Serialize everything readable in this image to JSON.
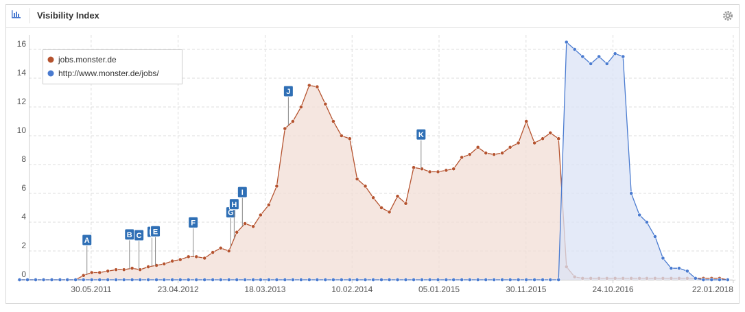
{
  "chart_data": {
    "type": "area",
    "title": "Visibility Index",
    "x": [
      "2010-09-01",
      "2010-10-01",
      "2010-11-01",
      "2010-12-01",
      "2011-01-01",
      "2011-02-01",
      "2011-03-01",
      "2011-04-01",
      "2011-05-01",
      "2011-06-01",
      "2011-07-01",
      "2011-08-01",
      "2011-09-01",
      "2011-10-01",
      "2011-11-01",
      "2011-12-01",
      "2012-01-01",
      "2012-02-01",
      "2012-03-01",
      "2012-04-01",
      "2012-05-01",
      "2012-06-01",
      "2012-07-01",
      "2012-08-01",
      "2012-09-01",
      "2012-10-01",
      "2012-11-01",
      "2012-12-01",
      "2013-01-01",
      "2013-02-01",
      "2013-03-01",
      "2013-04-01",
      "2013-05-01",
      "2013-06-01",
      "2013-07-01",
      "2013-08-01",
      "2013-09-01",
      "2013-10-01",
      "2013-11-01",
      "2013-12-01",
      "2014-01-01",
      "2014-02-01",
      "2014-03-01",
      "2014-04-01",
      "2014-05-01",
      "2014-06-01",
      "2014-07-01",
      "2014-08-01",
      "2014-09-01",
      "2014-10-01",
      "2014-11-01",
      "2014-12-01",
      "2015-01-01",
      "2015-02-01",
      "2015-03-01",
      "2015-04-01",
      "2015-05-01",
      "2015-06-01",
      "2015-07-01",
      "2015-08-01",
      "2015-09-01",
      "2015-10-01",
      "2015-11-01",
      "2015-12-01",
      "2016-01-01",
      "2016-02-01",
      "2016-03-01",
      "2016-04-01",
      "2016-05-01",
      "2016-06-01",
      "2016-07-01",
      "2016-08-01",
      "2016-09-01",
      "2016-10-01",
      "2016-11-01",
      "2016-12-01",
      "2017-01-01",
      "2017-02-01",
      "2017-03-01",
      "2017-04-01",
      "2017-05-01",
      "2017-06-01",
      "2017-07-01",
      "2017-08-01",
      "2017-09-01",
      "2017-10-01",
      "2017-11-01",
      "2017-12-01",
      "2018-01-01"
    ],
    "series": [
      {
        "name": "jobs.monster.de",
        "color": "#b5532f",
        "fill": "#f2ddd5",
        "values": [
          0,
          0,
          0,
          0,
          0,
          0,
          0,
          0,
          0.3,
          0.5,
          0.5,
          0.6,
          0.7,
          0.7,
          0.8,
          0.7,
          0.9,
          1.0,
          1.1,
          1.3,
          1.4,
          1.6,
          1.6,
          1.5,
          1.9,
          2.2,
          2.0,
          3.3,
          3.9,
          3.7,
          4.5,
          5.2,
          6.5,
          10.5,
          11.0,
          12.0,
          13.5,
          13.4,
          12.2,
          11.0,
          10.0,
          9.8,
          7.0,
          6.5,
          5.7,
          5.0,
          4.7,
          5.8,
          5.3,
          7.8,
          7.7,
          7.5,
          7.5,
          7.6,
          7.7,
          8.5,
          8.7,
          9.2,
          8.8,
          8.7,
          8.8,
          9.2,
          9.5,
          11.0,
          9.5,
          9.8,
          10.2,
          9.8,
          0.9,
          0.2,
          0.1,
          0.1,
          0.1,
          0.1,
          0.1,
          0.1,
          0.1,
          0.1,
          0.1,
          0.1,
          0.1,
          0.1,
          0.1,
          0.1,
          0.1,
          0.1,
          0.1,
          0.1,
          0
        ]
      },
      {
        "name": "http://www.monster.de/jobs/",
        "color": "#4a7bd0",
        "fill": "#dbe3f5",
        "values": [
          0,
          0,
          0,
          0,
          0,
          0,
          0,
          0,
          0,
          0,
          0,
          0,
          0,
          0,
          0,
          0,
          0,
          0,
          0,
          0,
          0,
          0,
          0,
          0,
          0,
          0,
          0,
          0,
          0,
          0,
          0,
          0,
          0,
          0,
          0,
          0,
          0,
          0,
          0,
          0,
          0,
          0,
          0,
          0,
          0,
          0,
          0,
          0,
          0,
          0,
          0,
          0,
          0,
          0,
          0,
          0,
          0,
          0,
          0,
          0,
          0,
          0,
          0,
          0,
          0,
          0,
          0,
          0,
          16.5,
          16.0,
          15.5,
          15.0,
          15.5,
          15.0,
          15.7,
          15.5,
          6.0,
          4.5,
          4.0,
          3.0,
          1.5,
          0.8,
          0.8,
          0.6,
          0.1,
          0,
          0,
          0,
          0
        ]
      }
    ],
    "events": [
      {
        "x": "2011-05-14",
        "label": "A"
      },
      {
        "x": "2011-10-22",
        "label": "B"
      },
      {
        "x": "2011-11-27",
        "label": "C"
      },
      {
        "x": "2012-01-15",
        "label": "D"
      },
      {
        "x": "2012-01-28",
        "label": "E"
      },
      {
        "x": "2012-06-19",
        "label": "F"
      },
      {
        "x": "2012-11-08",
        "label": "G"
      },
      {
        "x": "2012-11-21",
        "label": "H"
      },
      {
        "x": "2012-12-22",
        "label": "I"
      },
      {
        "x": "2013-06-14",
        "label": "J"
      },
      {
        "x": "2014-10-29",
        "label": "K"
      }
    ],
    "xlim": [
      "2010-08-23",
      "2018-01-30"
    ],
    "xticks": [
      {
        "value": "2011-05-30",
        "label": "30.05.2011"
      },
      {
        "value": "2012-04-23",
        "label": "23.04.2012"
      },
      {
        "value": "2013-03-18",
        "label": "18.03.2013"
      },
      {
        "value": "2014-02-10",
        "label": "10.02.2014"
      },
      {
        "value": "2015-01-05",
        "label": "05.01.2015"
      },
      {
        "value": "2015-11-30",
        "label": "30.11.2015"
      },
      {
        "value": "2016-10-24",
        "label": "24.10.2016"
      },
      {
        "value": "2018-01-22",
        "label": "22.01.2018"
      }
    ],
    "ylim": [
      0,
      17
    ],
    "yticks": [
      0,
      2,
      4,
      6,
      8,
      10,
      12,
      14,
      16
    ],
    "grid": true,
    "legend": "top-left"
  }
}
